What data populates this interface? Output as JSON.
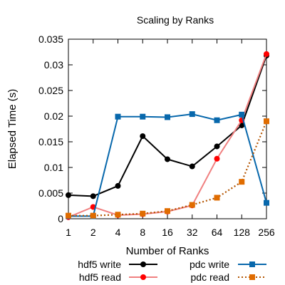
{
  "chart_data": {
    "type": "line",
    "title": "Scaling by Ranks",
    "xlabel": "Number of Ranks",
    "ylabel": "Elapsed Time (s)",
    "x_scale": "log2",
    "categories": [
      "1",
      "2",
      "4",
      "8",
      "16",
      "32",
      "64",
      "128",
      "256"
    ],
    "x": [
      1,
      2,
      4,
      8,
      16,
      32,
      64,
      128,
      256
    ],
    "ylim": [
      0,
      0.035
    ],
    "yticks": [
      "0",
      "0.005",
      "0.01",
      "0.015",
      "0.02",
      "0.025",
      "0.03",
      "0.035"
    ],
    "grid": false,
    "legend_position": "bottom",
    "series": [
      {
        "name": "hdf5 write",
        "color": "#000000",
        "marker": "circle",
        "line": "solid",
        "values": [
          0.0046,
          0.0044,
          0.0064,
          0.0161,
          0.0116,
          0.0102,
          0.0141,
          0.0182,
          0.0318
        ]
      },
      {
        "name": "hdf5 read",
        "color": "#ff0000",
        "line_color": "#f08080",
        "marker": "circle",
        "line": "solid",
        "values": [
          0.0003,
          0.0023,
          0.0007,
          0.0009,
          0.0014,
          0.0026,
          0.0117,
          0.0192,
          0.0321
        ]
      },
      {
        "name": "pdc write",
        "color": "#0868ac",
        "marker": "square",
        "line": "solid",
        "values": [
          0.0005,
          0.0005,
          0.0199,
          0.0199,
          0.0198,
          0.0204,
          0.0192,
          0.0203,
          0.0031
        ]
      },
      {
        "name": "pdc read",
        "color": "#e06c00",
        "line_color": "#b35400",
        "marker": "square",
        "line": "dotted",
        "values": [
          0.0006,
          0.0006,
          0.0008,
          0.001,
          0.0015,
          0.0027,
          0.0041,
          0.0072,
          0.019
        ]
      }
    ]
  }
}
